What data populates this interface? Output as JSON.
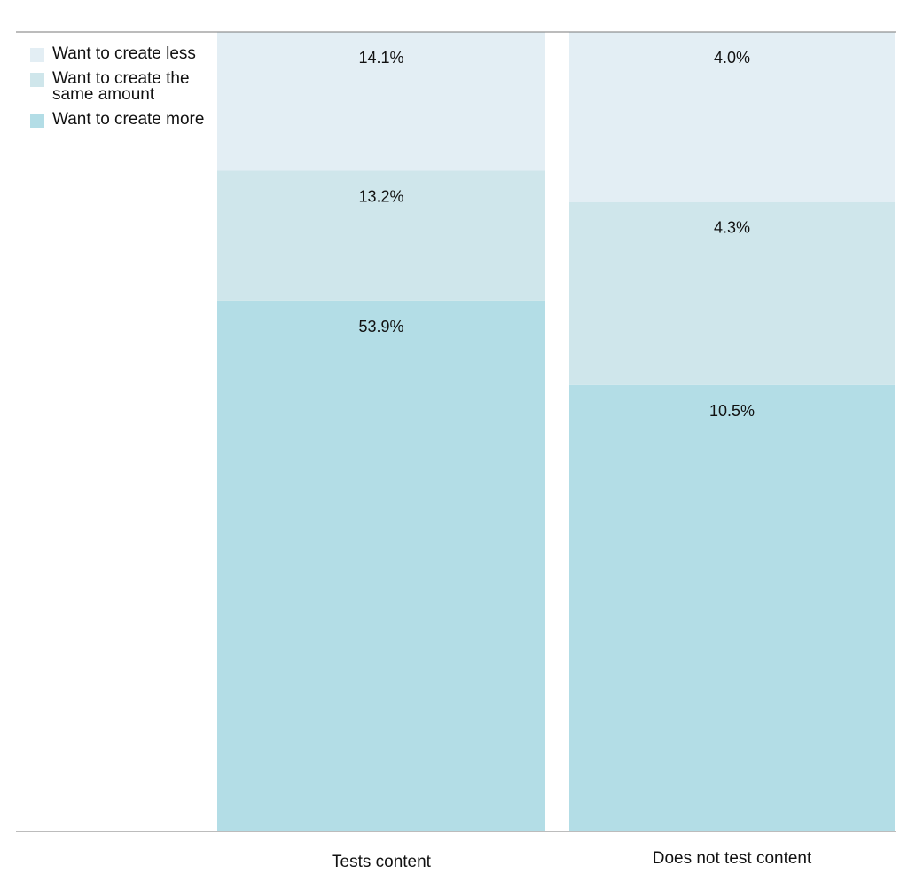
{
  "chart_data": {
    "type": "bar",
    "stacked": true,
    "normalized": true,
    "categories": [
      "Tests content",
      "Does not test content"
    ],
    "series": [
      {
        "name": "Want to create more",
        "values": [
          53.9,
          10.5
        ],
        "labels": [
          "53.9%",
          "10.5%"
        ],
        "color": "#b3dde6"
      },
      {
        "name": "Want to create the same amount",
        "values": [
          13.2,
          4.3
        ],
        "labels": [
          "13.2%",
          "4.3%"
        ],
        "color": "#cfe6eb"
      },
      {
        "name": "Want to create less",
        "values": [
          14.1,
          4.0
        ],
        "labels": [
          "14.1%",
          "4.0%"
        ],
        "color": "#e3eef4"
      }
    ],
    "legend": {
      "position": "top-left",
      "items": [
        {
          "label": "Want to create less",
          "color": "#e3eef4"
        },
        {
          "label": "Want to create the same amount",
          "color": "#cfe6eb"
        },
        {
          "label": "Want to create more",
          "color": "#b3dde6"
        }
      ]
    },
    "title": "",
    "xlabel": "",
    "ylabel": "",
    "grid": false
  },
  "colors": {
    "axis_line": "#7a7a7a",
    "text": "#111111"
  }
}
